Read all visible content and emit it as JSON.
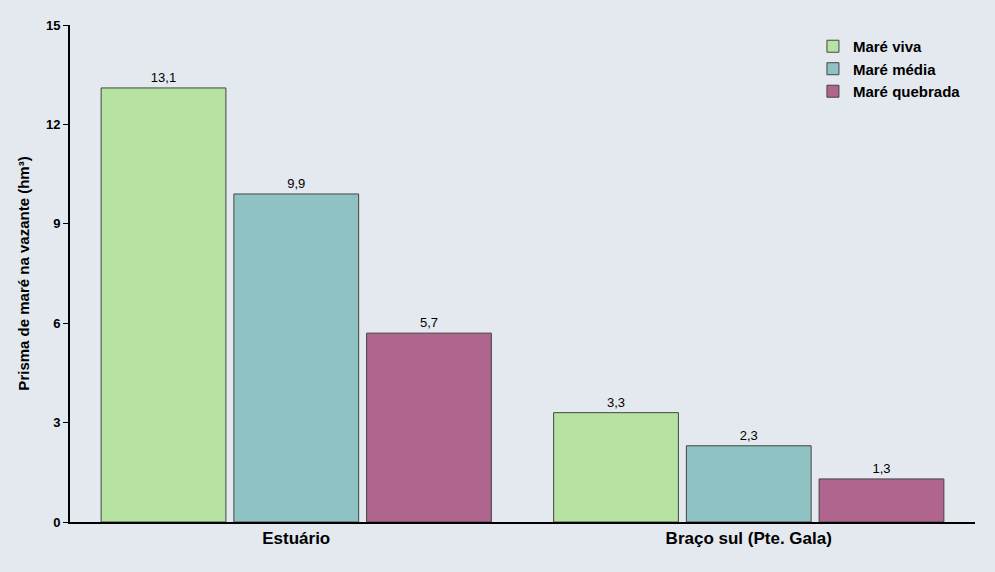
{
  "chart_data": {
    "type": "bar",
    "ylabel": "Prisma de maré na vazante (hm³)",
    "categories": [
      "Estuário",
      "Braço sul (Pte. Gala)"
    ],
    "series": [
      {
        "name": "Maré viva",
        "color": "#b7e3a2",
        "values": [
          13.1,
          3.3
        ],
        "value_labels": [
          "13,1",
          "3,3"
        ]
      },
      {
        "name": "Maré média",
        "color": "#8fc3c3",
        "values": [
          9.9,
          2.3
        ],
        "value_labels": [
          "9,9",
          "2,3"
        ]
      },
      {
        "name": "Maré quebrada",
        "color": "#b0658f",
        "values": [
          5.7,
          1.3
        ],
        "value_labels": [
          "5,7",
          "1,3"
        ]
      }
    ],
    "ylim": [
      0,
      15
    ],
    "yticks": [
      0,
      3,
      6,
      9,
      12,
      15
    ],
    "grid": false,
    "legend": "upper right",
    "data_labels": true
  }
}
